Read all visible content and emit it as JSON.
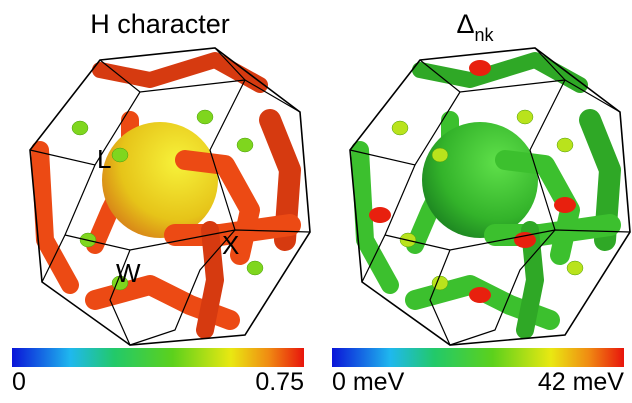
{
  "panels": [
    {
      "title": "H character",
      "labels": [
        "L",
        "W",
        "X"
      ],
      "colorbar": {
        "min_label": "0",
        "max_label": "0.75"
      }
    },
    {
      "title": "Δ",
      "title_subscript": "nk",
      "colorbar": {
        "min_label": "0 meV",
        "max_label": "42 meV"
      }
    }
  ]
}
